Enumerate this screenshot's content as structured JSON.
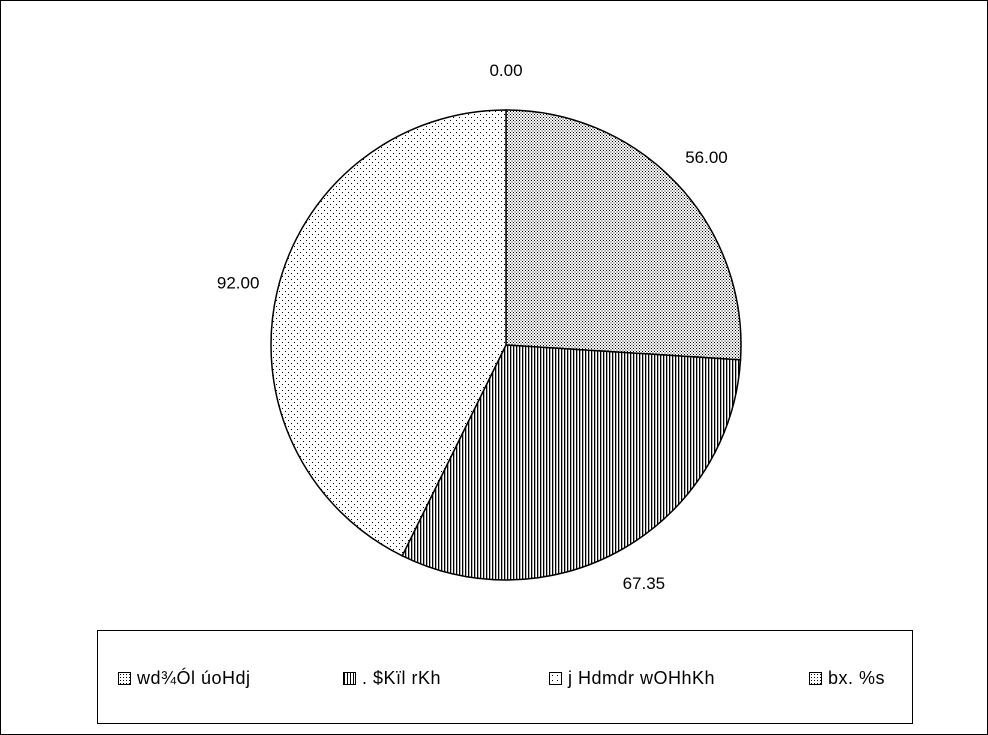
{
  "chart_data": {
    "type": "pie",
    "title": "",
    "categories": [
      "wd¾Ól úoHdj",
      ". $Kïl rKh",
      "j Hdmdr wOHhKh",
      "bx. %s"
    ],
    "values": [
      56.0,
      67.35,
      92.0,
      0.0
    ],
    "data_labels": [
      "56.00",
      "67.35",
      "92.00",
      "0.00"
    ],
    "patterns": [
      "fine-dots",
      "vertical-lines",
      "sparse-dots",
      "fine-dots"
    ],
    "legend_position": "bottom",
    "colors": {
      "ink": "#000000",
      "background": "#ffffff"
    }
  }
}
